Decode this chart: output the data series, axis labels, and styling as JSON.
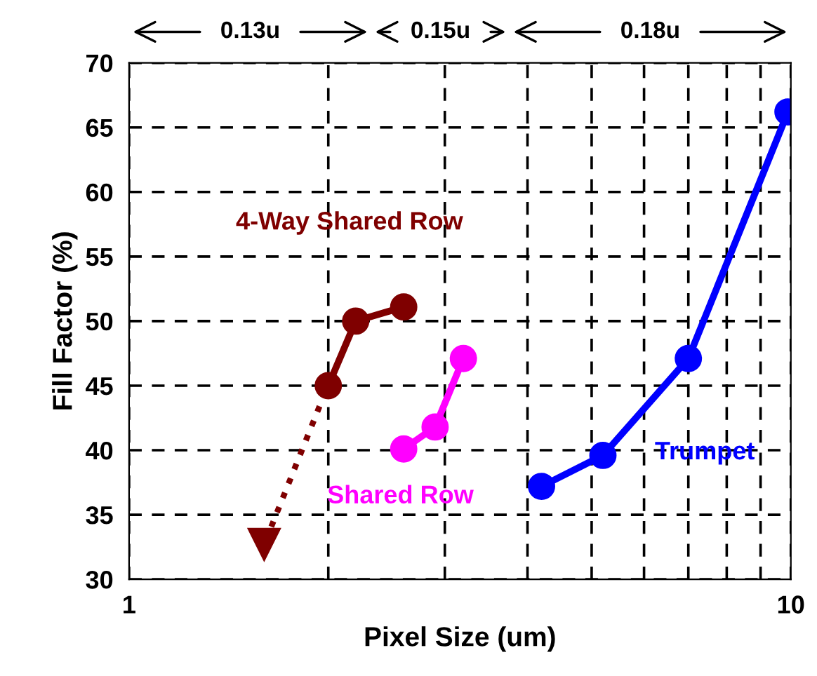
{
  "chart_data": {
    "type": "line",
    "xlabel": "Pixel Size (um)",
    "ylabel": "Fill Factor (%)",
    "log": "x",
    "xlim": [
      1,
      10
    ],
    "ylim": [
      30,
      70
    ],
    "xticks": [
      1,
      {
        "value": 2,
        "label": null
      },
      {
        "value": 3,
        "label": null
      },
      {
        "value": 4,
        "label": null
      },
      {
        "value": 5,
        "label": null
      },
      {
        "value": 6,
        "label": null
      },
      {
        "value": 7,
        "label": null
      },
      {
        "value": 8,
        "label": null
      },
      {
        "value": 9,
        "label": null
      },
      10
    ],
    "yticks": [
      30,
      35,
      40,
      45,
      50,
      55,
      60,
      65,
      70
    ],
    "grid": true,
    "marker": "circle",
    "line_style": "solid",
    "series": [
      {
        "x": [
          1.94,
          1.6
        ],
        "values": [
          43.4,
          32.7
        ],
        "color": "#7f0000",
        "line_style": "dotted",
        "marker": "triangle"
      },
      {
        "name": "4-Way Shared Row",
        "x": [
          2.0,
          2.2,
          2.6
        ],
        "values": [
          45,
          50,
          51.1
        ],
        "color": "#7f0000"
      },
      {
        "name": "Shared Row",
        "x": [
          2.6,
          2.9,
          3.2
        ],
        "values": [
          40.1,
          41.8,
          47.1
        ],
        "color": "#ff00ff"
      },
      {
        "name": "Trumpet",
        "x": [
          4.2,
          5.2,
          7.0,
          9.9
        ],
        "values": [
          37.2,
          39.6,
          47.1,
          66.2
        ],
        "color": "#0000ff"
      }
    ],
    "annotations": [
      "0.13u",
      "0.15u",
      "0.18u"
    ]
  }
}
